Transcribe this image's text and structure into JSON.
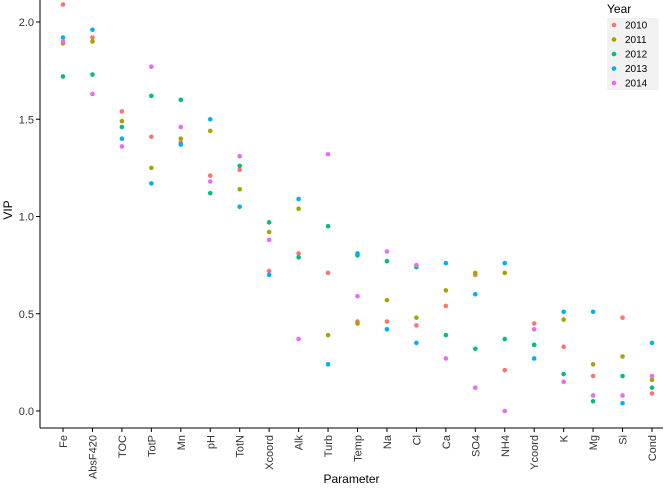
{
  "chart_data": {
    "type": "scatter",
    "title": "",
    "xlabel": "Parameter",
    "ylabel": "VIP",
    "ylim": [
      -0.1,
      2.15
    ],
    "yticks": [
      "0.0",
      "0.5",
      "1.0",
      "1.5",
      "2.0"
    ],
    "grid": false,
    "legend": {
      "title": "Year",
      "placement": "top-right"
    },
    "categories": [
      "Fe",
      "AbsF420",
      "TOC",
      "TotP",
      "Mn",
      "pH",
      "TotN",
      "Xcoord",
      "Alk",
      "Turb",
      "Temp",
      "Na",
      "Cl",
      "Ca",
      "SO4",
      "NH4",
      "Ycoord",
      "K",
      "Mg",
      "Si",
      "Cond"
    ],
    "series": [
      {
        "name": "2010",
        "color": "#f8766d",
        "values": [
          2.09,
          1.92,
          1.54,
          1.41,
          1.38,
          1.21,
          1.24,
          0.72,
          0.81,
          0.71,
          0.46,
          0.46,
          0.44,
          0.54,
          0.7,
          0.21,
          0.45,
          0.33,
          0.18,
          0.48,
          0.09
        ]
      },
      {
        "name": "2011",
        "color": "#a3a500",
        "values": [
          1.89,
          1.9,
          1.49,
          1.25,
          1.4,
          1.44,
          1.14,
          0.92,
          1.04,
          0.39,
          0.45,
          0.57,
          0.48,
          0.62,
          0.71,
          0.71,
          0.34,
          0.47,
          0.24,
          0.28,
          0.16
        ]
      },
      {
        "name": "2012",
        "color": "#00bf7d",
        "values": [
          1.72,
          1.73,
          1.46,
          1.62,
          1.6,
          1.12,
          1.26,
          0.97,
          0.79,
          0.95,
          0.8,
          0.77,
          0.74,
          0.39,
          0.32,
          0.37,
          0.34,
          0.19,
          0.05,
          0.18,
          0.12
        ]
      },
      {
        "name": "2013",
        "color": "#00b0f6",
        "values": [
          1.92,
          1.96,
          1.4,
          1.17,
          1.37,
          1.5,
          1.05,
          0.7,
          1.09,
          0.24,
          0.81,
          0.42,
          0.35,
          0.76,
          0.6,
          0.76,
          0.27,
          0.51,
          0.51,
          0.04,
          0.35
        ]
      },
      {
        "name": "2014",
        "color": "#e76bf3",
        "values": [
          1.9,
          1.63,
          1.36,
          1.77,
          1.46,
          1.18,
          1.31,
          0.88,
          0.37,
          1.32,
          0.59,
          0.82,
          0.75,
          0.27,
          0.12,
          0.0,
          0.42,
          0.15,
          0.08,
          0.08,
          0.18
        ]
      }
    ]
  }
}
